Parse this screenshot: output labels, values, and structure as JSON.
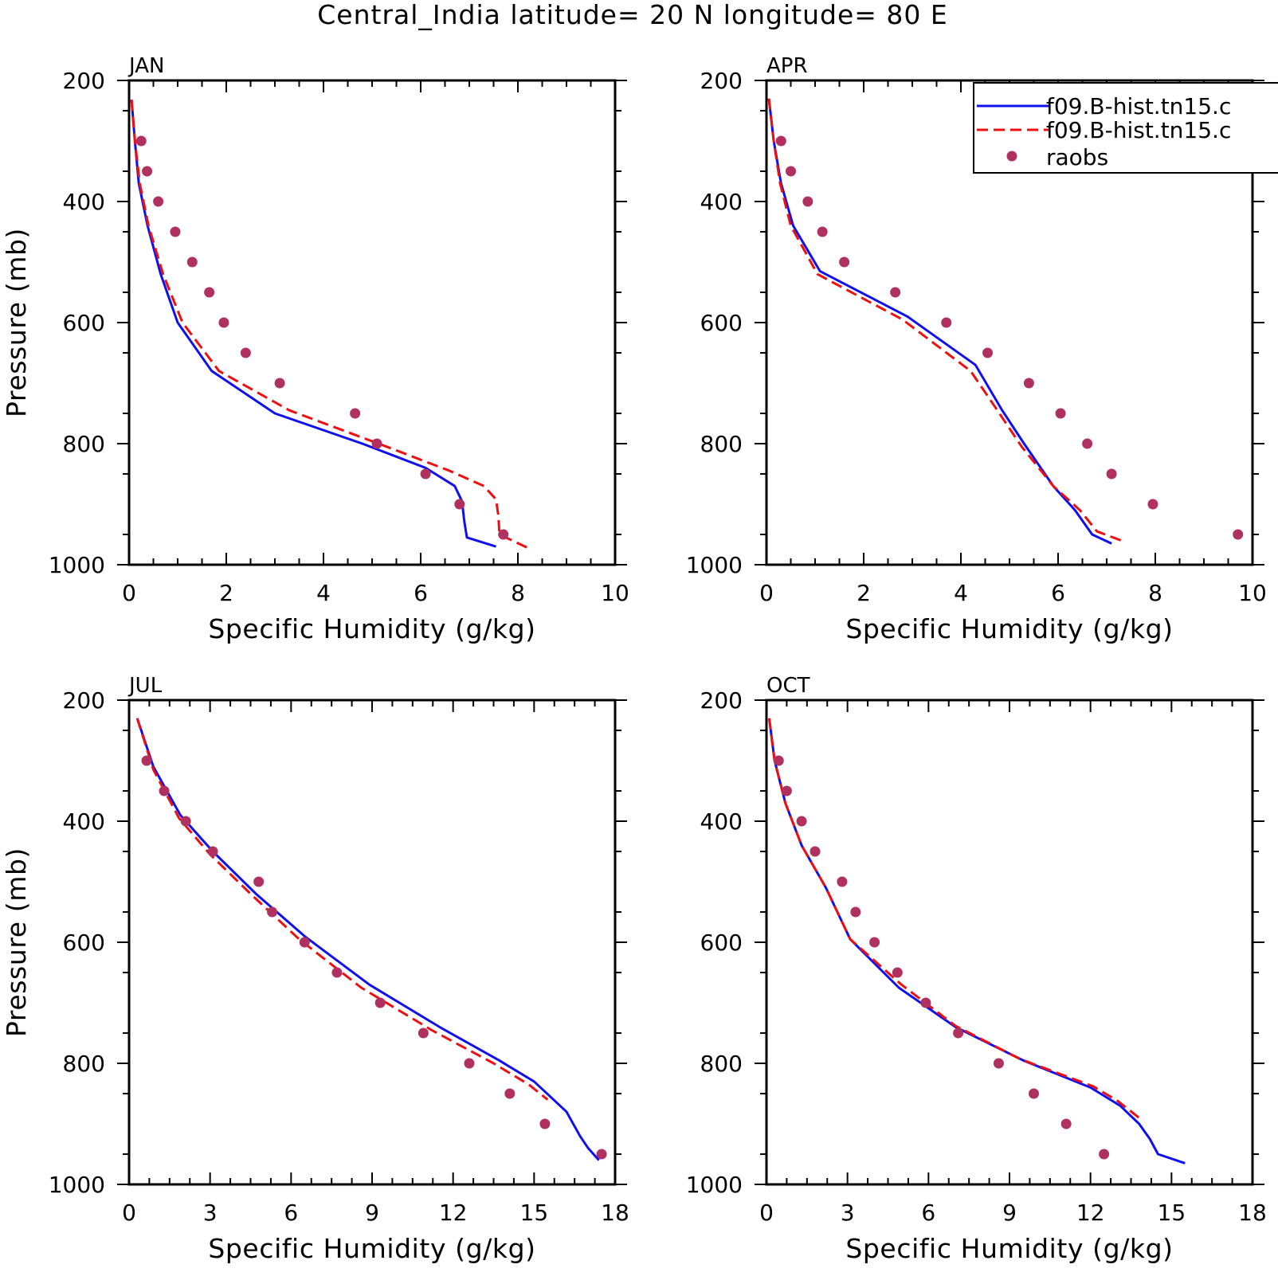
{
  "title": "Central_India  latitude= 20 N longitude= 80 E",
  "legend": {
    "entries": [
      {
        "label": "f09.B-hist.tn15.c",
        "style": "solid",
        "color": "#1010ee"
      },
      {
        "label": "f09.B-hist.tn15.c",
        "style": "dashed",
        "color": "#ee1010"
      },
      {
        "label": "raobs",
        "style": "marker",
        "color": "#b03060"
      }
    ]
  },
  "colors": {
    "series_a": "#1010ee",
    "series_b": "#ee1010",
    "raobs": "#b03060"
  },
  "chart_data": [
    {
      "type": "line",
      "title": "JAN",
      "xlabel": "Specific Humidity (g/kg)",
      "ylabel": "Pressure (mb)",
      "xlim": [
        0,
        10
      ],
      "ylim": [
        1000,
        200
      ],
      "xticks": [
        "0",
        "2",
        "4",
        "6",
        "8",
        "10"
      ],
      "yticks": [
        "200",
        "400",
        "600",
        "800",
        "1000"
      ],
      "series": [
        {
          "style": "solid",
          "color": "#1010ee",
          "points": [
            [
              0.05,
              232
            ],
            [
              0.12,
              300
            ],
            [
              0.2,
              370
            ],
            [
              0.38,
              440
            ],
            [
              0.65,
              520
            ],
            [
              1.0,
              600
            ],
            [
              1.7,
              680
            ],
            [
              3.0,
              750
            ],
            [
              4.8,
              800
            ],
            [
              6.1,
              840
            ],
            [
              6.7,
              870
            ],
            [
              6.85,
              895
            ],
            [
              6.9,
              930
            ],
            [
              6.95,
              955
            ],
            [
              7.55,
              970
            ]
          ]
        },
        {
          "style": "dashed",
          "color": "#ee1010",
          "points": [
            [
              0.05,
              232
            ],
            [
              0.12,
              300
            ],
            [
              0.22,
              370
            ],
            [
              0.4,
              440
            ],
            [
              0.7,
              520
            ],
            [
              1.1,
              600
            ],
            [
              1.85,
              680
            ],
            [
              3.3,
              745
            ],
            [
              5.3,
              805
            ],
            [
              6.6,
              845
            ],
            [
              7.3,
              870
            ],
            [
              7.55,
              892
            ],
            [
              7.6,
              920
            ],
            [
              7.62,
              950
            ],
            [
              8.2,
              972
            ]
          ]
        },
        {
          "style": "marker",
          "color": "#b03060",
          "points": [
            [
              0.25,
              300
            ],
            [
              0.37,
              350
            ],
            [
              0.6,
              400
            ],
            [
              0.95,
              450
            ],
            [
              1.3,
              500
            ],
            [
              1.65,
              550
            ],
            [
              1.95,
              600
            ],
            [
              2.4,
              650
            ],
            [
              3.1,
              700
            ],
            [
              4.65,
              750
            ],
            [
              5.1,
              800
            ],
            [
              6.1,
              850
            ],
            [
              6.8,
              900
            ],
            [
              7.7,
              950
            ]
          ]
        }
      ]
    },
    {
      "type": "line",
      "title": "APR",
      "xlabel": "Specific Humidity (g/kg)",
      "ylabel": "",
      "xlim": [
        0,
        10
      ],
      "ylim": [
        1000,
        200
      ],
      "xticks": [
        "0",
        "2",
        "4",
        "6",
        "8",
        "10"
      ],
      "yticks": [
        "200",
        "400",
        "600",
        "800",
        "1000"
      ],
      "series": [
        {
          "style": "solid",
          "color": "#1010ee",
          "points": [
            [
              0.05,
              230
            ],
            [
              0.15,
              300
            ],
            [
              0.3,
              370
            ],
            [
              0.55,
              440
            ],
            [
              1.1,
              515
            ],
            [
              2.9,
              590
            ],
            [
              4.3,
              670
            ],
            [
              4.85,
              745
            ],
            [
              5.3,
              800
            ],
            [
              5.9,
              870
            ],
            [
              6.35,
              910
            ],
            [
              6.7,
              950
            ],
            [
              7.1,
              965
            ]
          ]
        },
        {
          "style": "dashed",
          "color": "#ee1010",
          "points": [
            [
              0.05,
              230
            ],
            [
              0.15,
              300
            ],
            [
              0.28,
              370
            ],
            [
              0.5,
              440
            ],
            [
              1.05,
              520
            ],
            [
              2.8,
              595
            ],
            [
              4.2,
              680
            ],
            [
              4.75,
              745
            ],
            [
              5.25,
              805
            ],
            [
              5.9,
              870
            ],
            [
              6.45,
              910
            ],
            [
              6.8,
              945
            ],
            [
              7.3,
              960
            ]
          ]
        },
        {
          "style": "marker",
          "color": "#b03060",
          "points": [
            [
              0.3,
              300
            ],
            [
              0.5,
              350
            ],
            [
              0.85,
              400
            ],
            [
              1.15,
              450
            ],
            [
              1.6,
              500
            ],
            [
              2.65,
              550
            ],
            [
              3.7,
              600
            ],
            [
              4.55,
              650
            ],
            [
              5.4,
              700
            ],
            [
              6.05,
              750
            ],
            [
              6.6,
              800
            ],
            [
              7.1,
              850
            ],
            [
              7.95,
              900
            ],
            [
              9.7,
              950
            ]
          ]
        }
      ]
    },
    {
      "type": "line",
      "title": "JUL",
      "xlabel": "Specific Humidity (g/kg)",
      "ylabel": "Pressure (mb)",
      "xlim": [
        0,
        18
      ],
      "ylim": [
        1000,
        200
      ],
      "xticks": [
        "0",
        "3",
        "6",
        "9",
        "12",
        "15",
        "18"
      ],
      "yticks": [
        "200",
        "400",
        "600",
        "800",
        "1000"
      ],
      "series": [
        {
          "style": "solid",
          "color": "#1010ee",
          "points": [
            [
              0.3,
              230
            ],
            [
              0.9,
              310
            ],
            [
              1.9,
              390
            ],
            [
              3.1,
              450
            ],
            [
              4.7,
              520
            ],
            [
              6.5,
              590
            ],
            [
              8.9,
              670
            ],
            [
              11.5,
              740
            ],
            [
              13.7,
              795
            ],
            [
              15.0,
              830
            ],
            [
              15.6,
              855
            ],
            [
              16.2,
              880
            ],
            [
              16.7,
              920
            ],
            [
              17.0,
              940
            ],
            [
              17.4,
              960
            ]
          ]
        },
        {
          "style": "dashed",
          "color": "#ee1010",
          "points": [
            [
              0.3,
              230
            ],
            [
              0.9,
              315
            ],
            [
              1.85,
              395
            ],
            [
              3.0,
              455
            ],
            [
              4.5,
              520
            ],
            [
              6.3,
              595
            ],
            [
              8.6,
              675
            ],
            [
              11.2,
              745
            ],
            [
              13.5,
              800
            ],
            [
              14.8,
              835
            ],
            [
              15.5,
              860
            ]
          ]
        },
        {
          "style": "marker",
          "color": "#b03060",
          "points": [
            [
              0.65,
              300
            ],
            [
              1.3,
              350
            ],
            [
              2.1,
              400
            ],
            [
              3.1,
              450
            ],
            [
              4.8,
              500
            ],
            [
              5.3,
              550
            ],
            [
              6.5,
              600
            ],
            [
              7.7,
              650
            ],
            [
              9.3,
              700
            ],
            [
              10.9,
              750
            ],
            [
              12.6,
              800
            ],
            [
              14.1,
              850
            ],
            [
              15.4,
              900
            ],
            [
              17.5,
              950
            ]
          ]
        }
      ]
    },
    {
      "type": "line",
      "title": "OCT",
      "xlabel": "Specific Humidity (g/kg)",
      "ylabel": "",
      "xlim": [
        0,
        18
      ],
      "ylim": [
        1000,
        200
      ],
      "xticks": [
        "0",
        "3",
        "6",
        "9",
        "12",
        "15",
        "18"
      ],
      "yticks": [
        "200",
        "400",
        "600",
        "800",
        "1000"
      ],
      "series": [
        {
          "style": "solid",
          "color": "#1010ee",
          "points": [
            [
              0.1,
              230
            ],
            [
              0.3,
              300
            ],
            [
              0.7,
              370
            ],
            [
              1.3,
              440
            ],
            [
              2.2,
              510
            ],
            [
              3.1,
              595
            ],
            [
              4.9,
              675
            ],
            [
              7.0,
              740
            ],
            [
              9.5,
              795
            ],
            [
              12.0,
              840
            ],
            [
              13.1,
              870
            ],
            [
              13.8,
              900
            ],
            [
              14.2,
              925
            ],
            [
              14.5,
              950
            ],
            [
              15.5,
              965
            ]
          ]
        },
        {
          "style": "dashed",
          "color": "#ee1010",
          "points": [
            [
              0.1,
              230
            ],
            [
              0.3,
              300
            ],
            [
              0.7,
              370
            ],
            [
              1.3,
              440
            ],
            [
              2.2,
              510
            ],
            [
              3.1,
              595
            ],
            [
              5.0,
              670
            ],
            [
              7.0,
              738
            ],
            [
              9.4,
              793
            ],
            [
              12.1,
              838
            ],
            [
              13.0,
              862
            ],
            [
              13.8,
              890
            ]
          ]
        },
        {
          "style": "marker",
          "color": "#b03060",
          "points": [
            [
              0.45,
              300
            ],
            [
              0.75,
              350
            ],
            [
              1.3,
              400
            ],
            [
              1.8,
              450
            ],
            [
              2.8,
              500
            ],
            [
              3.3,
              550
            ],
            [
              4.0,
              600
            ],
            [
              4.85,
              650
            ],
            [
              5.9,
              700
            ],
            [
              7.1,
              750
            ],
            [
              8.6,
              800
            ],
            [
              9.9,
              850
            ],
            [
              11.1,
              900
            ],
            [
              12.5,
              950
            ]
          ]
        }
      ]
    }
  ]
}
